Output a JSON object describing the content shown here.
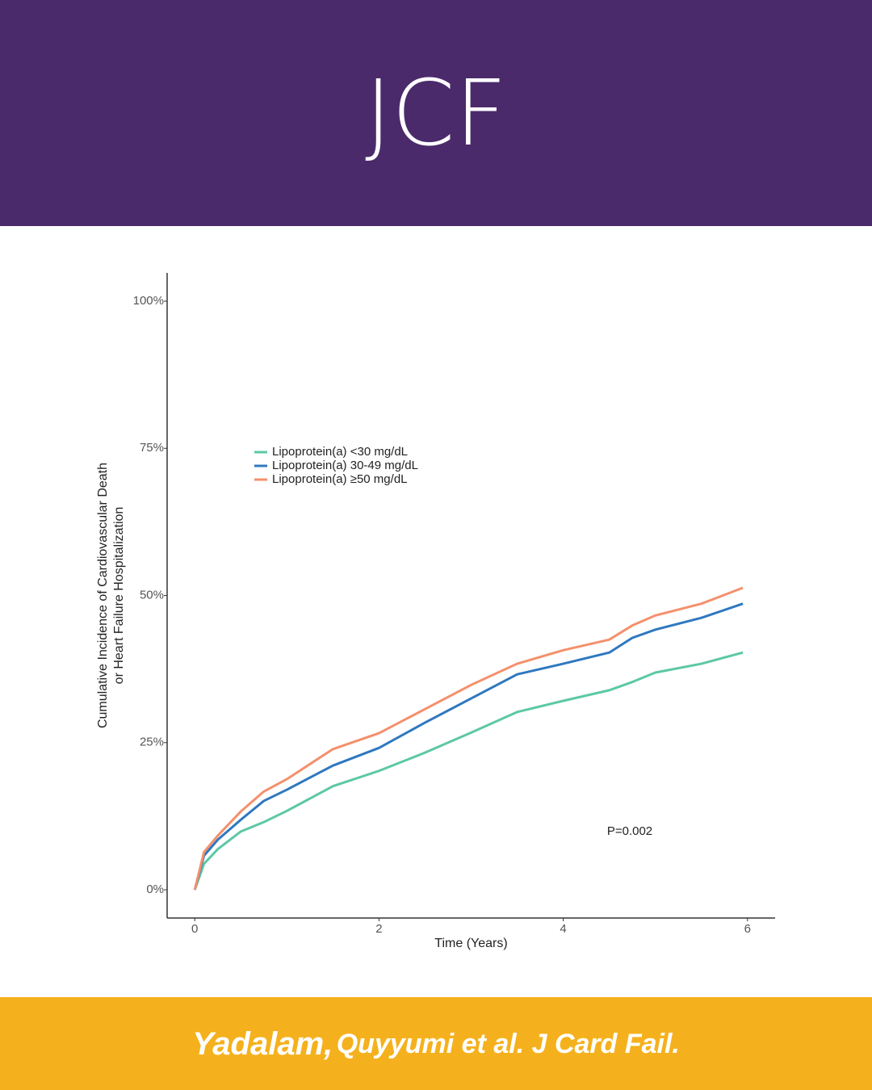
{
  "header": {
    "title": "JCF"
  },
  "chart_data": {
    "type": "line",
    "ylabel": [
      "Cumulative Incidence of Cardiovascular Death",
      "or Heart Failure Hospitalization"
    ],
    "xlabel": "Time (Years)",
    "x": [
      0,
      0.1,
      0.25,
      0.5,
      0.75,
      1,
      1.5,
      2,
      2.5,
      3,
      3.5,
      4,
      4.5,
      4.75,
      5,
      5.5,
      5.95
    ],
    "series": [
      {
        "name": "Lipoprotein(a) <30 mg/dL",
        "color": "#5cc8a5",
        "values": [
          0,
          4.4,
          6.9,
          9.9,
          11.5,
          13.4,
          17.6,
          20.2,
          23.3,
          26.7,
          30.2,
          32.1,
          33.9,
          35.3,
          36.9,
          38.4,
          40.3
        ]
      },
      {
        "name": "Lipoprotein(a) 30-49 mg/dL",
        "color": "#2f78bf",
        "values": [
          0,
          5.8,
          8.5,
          11.9,
          15.1,
          17.0,
          21.1,
          24.1,
          28.4,
          32.5,
          36.6,
          38.4,
          40.3,
          42.8,
          44.2,
          46.2,
          48.6
        ]
      },
      {
        "name": "Lipoprotein(a) ≥50 mg/dL",
        "color": "#f4906c",
        "values": [
          0,
          6.4,
          9.2,
          13.3,
          16.7,
          18.8,
          23.9,
          26.6,
          30.7,
          34.8,
          38.4,
          40.7,
          42.5,
          44.9,
          46.6,
          48.6,
          51.3
        ]
      }
    ],
    "xlim": [
      -0.3,
      6.3
    ],
    "ylim": [
      -4.8,
      104.8
    ],
    "xticks": [
      0,
      2,
      4,
      6
    ],
    "yticks": [
      {
        "value": 0,
        "label": "0%"
      },
      {
        "value": 25,
        "label": "25%"
      },
      {
        "value": 50,
        "label": "50%"
      },
      {
        "value": 75,
        "label": "75%"
      },
      {
        "value": 100,
        "label": "100%"
      }
    ],
    "legend": "upper left",
    "annotation": "P=0.002"
  },
  "footer": {
    "author": "Yadalam,",
    "citation": "Quyyumi et al. J Card Fail."
  }
}
